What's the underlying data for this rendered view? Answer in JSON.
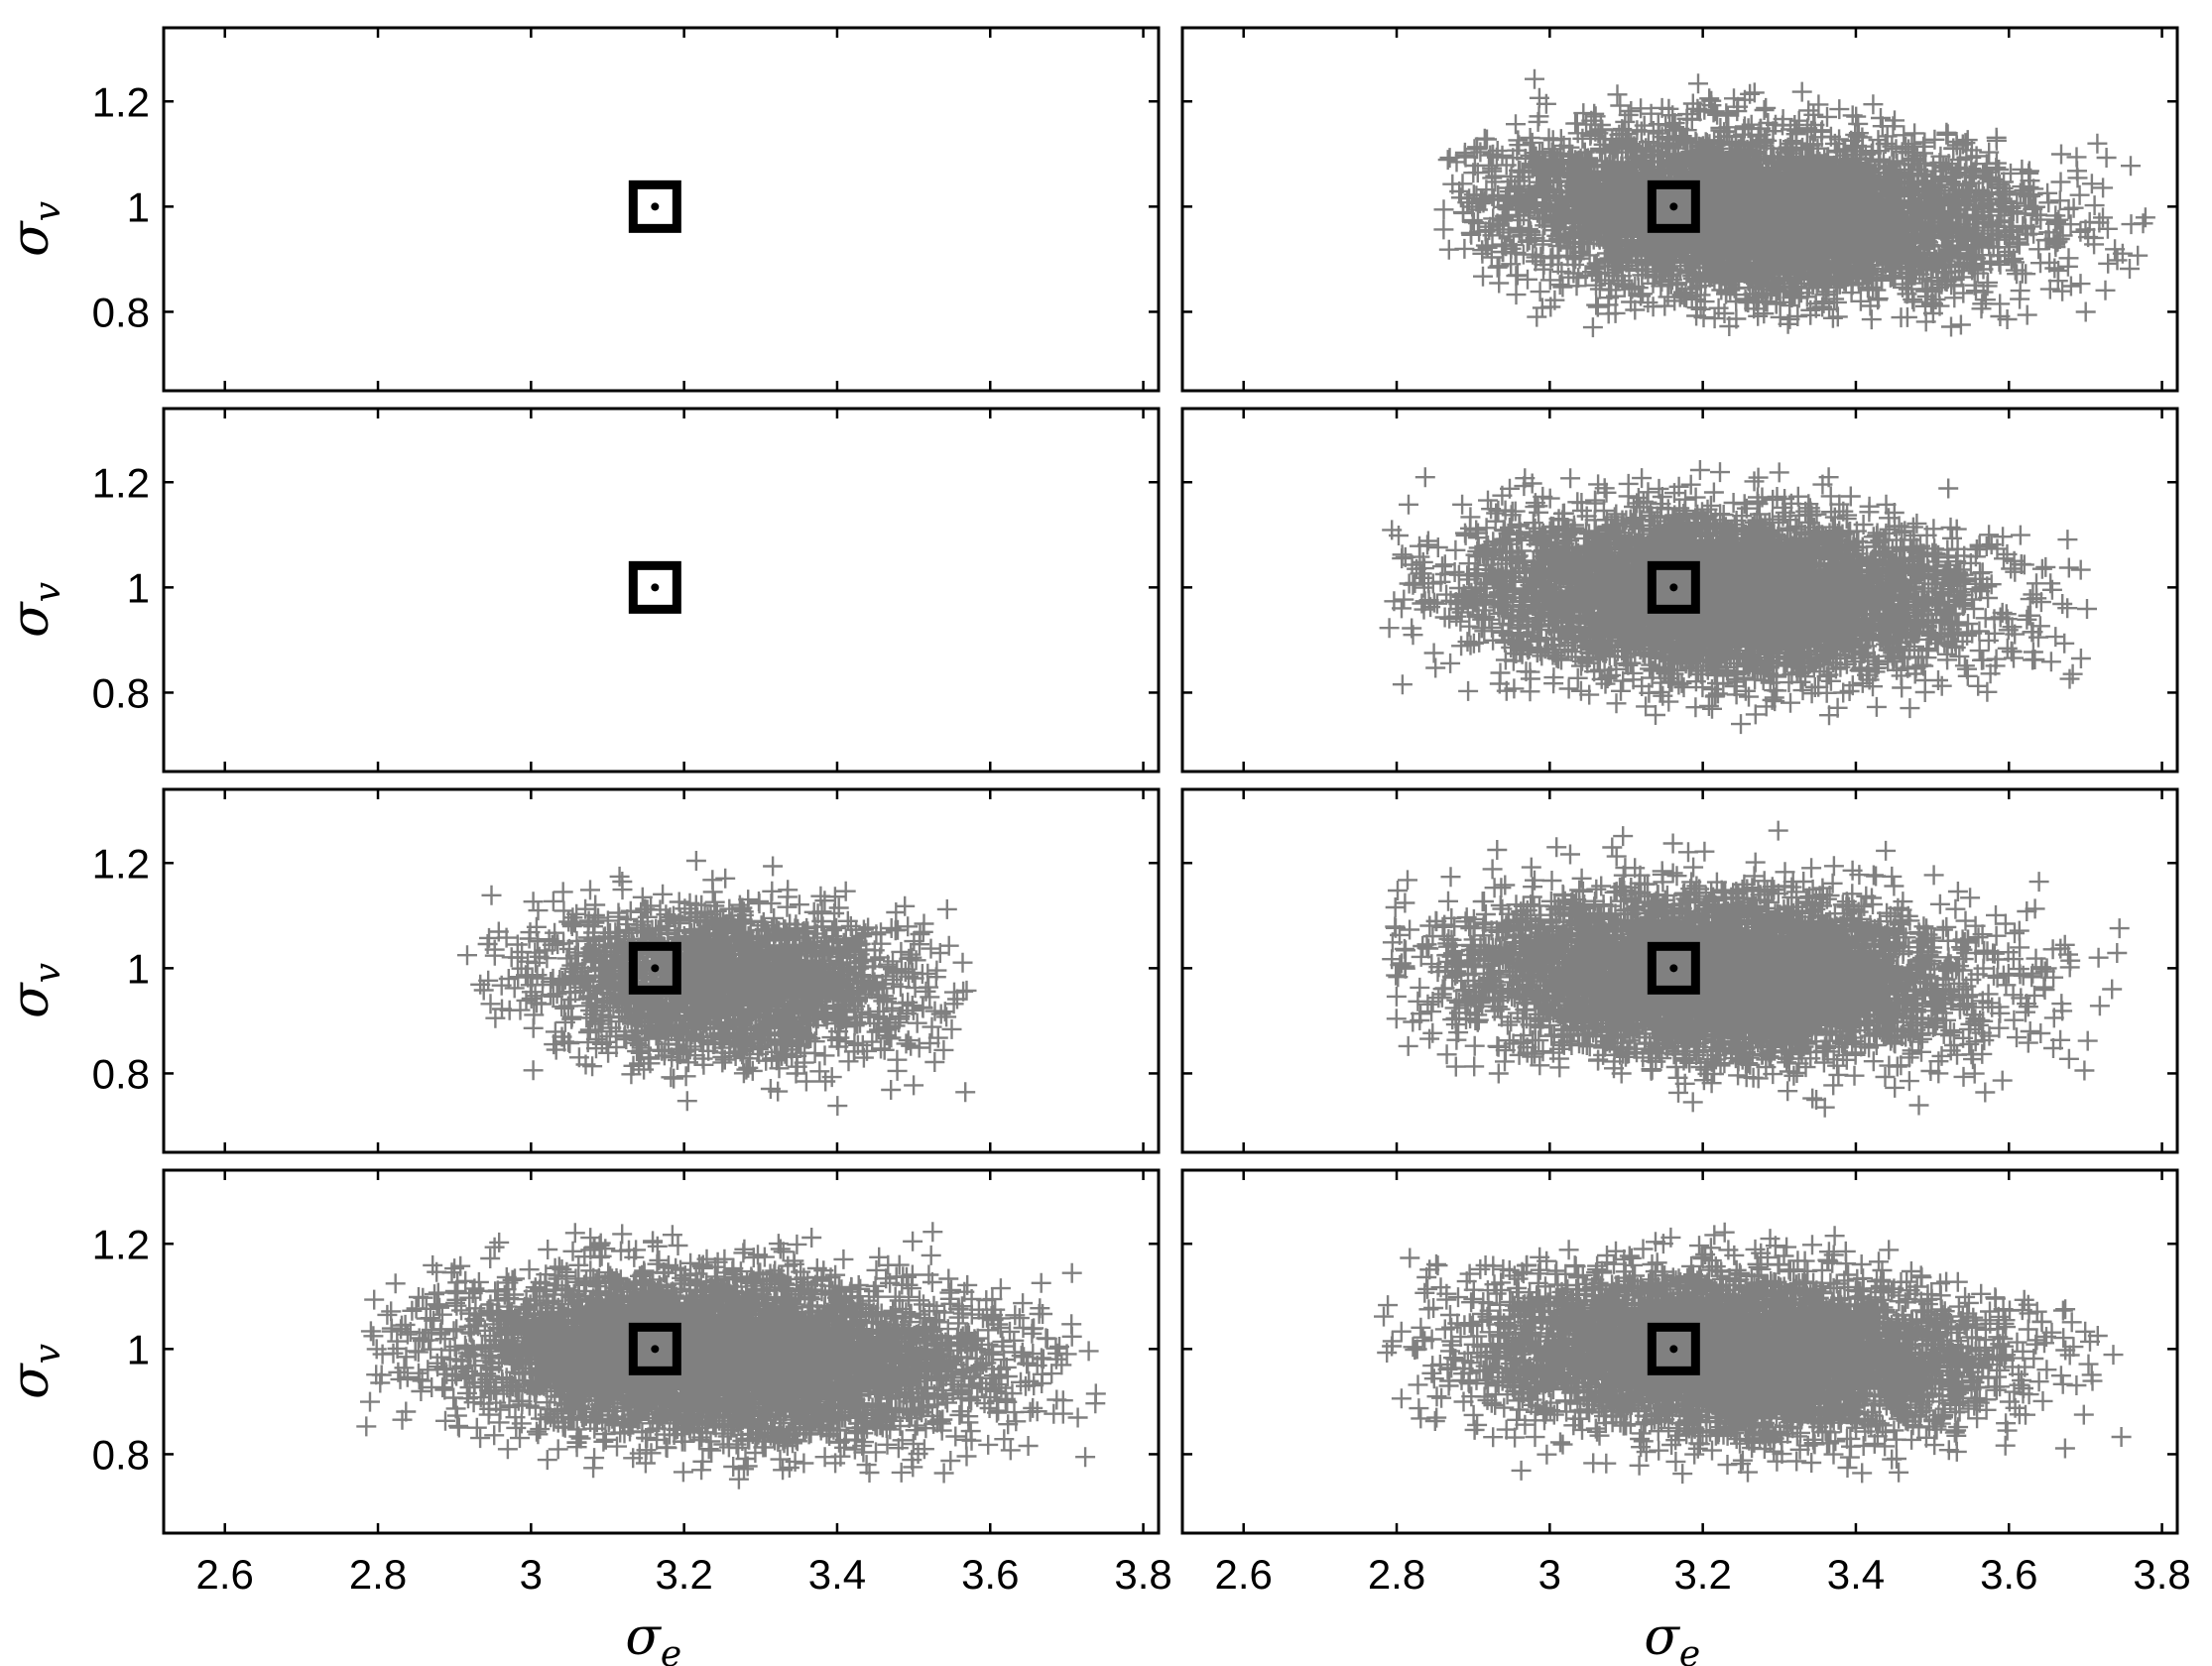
{
  "chart_data": {
    "type": "scatter",
    "layout": {
      "rows": 4,
      "cols": 2
    },
    "xlabel": {
      "symbol": "σ",
      "subscript": "e"
    },
    "ylabel": {
      "symbol": "σ",
      "subscript": "v"
    },
    "xlim": [
      2.52,
      3.82
    ],
    "ylim": [
      0.65,
      1.34
    ],
    "xticks": [
      2.6,
      2.8,
      3.0,
      3.2,
      3.4,
      3.6,
      3.8
    ],
    "xtick_labels": [
      "2.6",
      "2.8",
      "3",
      "3.2",
      "3.4",
      "3.6",
      "3.8"
    ],
    "yticks": [
      0.8,
      1.0,
      1.2
    ],
    "ytick_labels": [
      "0.8",
      "1",
      "1.2"
    ],
    "marker": "+",
    "point_color": "#808080",
    "true_value": {
      "x": 3.162,
      "y": 1.0,
      "marker": "square-with-dot",
      "color": "#000000"
    },
    "panels": [
      {
        "id": "r1c1",
        "row": 0,
        "col": 0,
        "n": 0,
        "cx": 3.16,
        "cy": 1.0,
        "sx": 0.0,
        "sy": 0.0,
        "seed": 1
      },
      {
        "id": "r1c2",
        "row": 0,
        "col": 1,
        "n": 5200,
        "cx": 3.27,
        "cy": 0.985,
        "sx": 0.165,
        "sy": 0.075,
        "seed": 2,
        "x_range": [
          2.86,
          3.79
        ],
        "y_range": [
          0.77,
          1.26
        ]
      },
      {
        "id": "r2c1",
        "row": 1,
        "col": 0,
        "n": 0,
        "cx": 3.16,
        "cy": 1.0,
        "sx": 0.0,
        "sy": 0.0,
        "seed": 3
      },
      {
        "id": "r2c2",
        "row": 1,
        "col": 1,
        "n": 5000,
        "cx": 3.22,
        "cy": 0.985,
        "sx": 0.16,
        "sy": 0.075,
        "seed": 4,
        "x_range": [
          2.79,
          3.71
        ],
        "y_range": [
          0.74,
          1.24
        ]
      },
      {
        "id": "r3c1",
        "row": 2,
        "col": 0,
        "n": 2200,
        "cx": 3.26,
        "cy": 0.97,
        "sx": 0.12,
        "sy": 0.07,
        "seed": 5,
        "x_range": [
          2.9,
          3.57
        ],
        "y_range": [
          0.73,
          1.26
        ]
      },
      {
        "id": "r3c2",
        "row": 2,
        "col": 1,
        "n": 5000,
        "cx": 3.22,
        "cy": 0.985,
        "sx": 0.165,
        "sy": 0.075,
        "seed": 6,
        "x_range": [
          2.79,
          3.75
        ],
        "y_range": [
          0.73,
          1.27
        ]
      },
      {
        "id": "r4c1",
        "row": 3,
        "col": 0,
        "n": 5000,
        "cx": 3.25,
        "cy": 0.985,
        "sx": 0.17,
        "sy": 0.075,
        "seed": 7,
        "x_range": [
          2.77,
          3.74
        ],
        "y_range": [
          0.74,
          1.23
        ]
      },
      {
        "id": "r4c2",
        "row": 3,
        "col": 1,
        "n": 5000,
        "cx": 3.24,
        "cy": 0.99,
        "sx": 0.165,
        "sy": 0.075,
        "seed": 8,
        "x_range": [
          2.78,
          3.75
        ],
        "y_range": [
          0.76,
          1.23
        ]
      }
    ]
  }
}
